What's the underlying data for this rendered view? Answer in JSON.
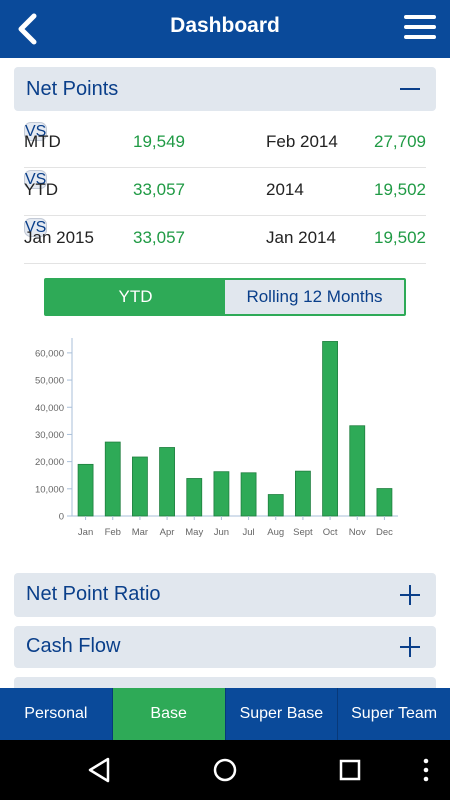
{
  "header": {
    "title": "Dashboard",
    "back_icon": "chevron-left-icon",
    "menu_icon": "hamburger-menu-icon"
  },
  "net_points": {
    "title": "Net Points",
    "toggle_icon": "minus-icon",
    "rows": [
      {
        "label": "MTD",
        "value": "19,549",
        "vs": "VS",
        "compare_label": "Feb 2014",
        "compare_value": "27,709"
      },
      {
        "label": "YTD",
        "value": "33,057",
        "vs": "VS",
        "compare_label": "2014",
        "compare_value": "19,502"
      },
      {
        "label": "Jan 2015",
        "value": "33,057",
        "vs": "VS",
        "compare_label": "Jan 2014",
        "compare_value": "19,502"
      }
    ]
  },
  "segment": {
    "options": [
      "YTD",
      "Rolling 12 Months"
    ],
    "selected": "YTD"
  },
  "chart_data": {
    "type": "bar",
    "categories": [
      "Jan",
      "Feb",
      "Mar",
      "Apr",
      "May",
      "Jun",
      "Jul",
      "Aug",
      "Sept",
      "Oct",
      "Nov",
      "Dec"
    ],
    "values": [
      19000,
      27200,
      21700,
      25200,
      13800,
      16300,
      15900,
      7900,
      16500,
      64200,
      33200,
      10100
    ],
    "ylim": [
      0,
      64000
    ],
    "yticks": [
      0,
      10000,
      20000,
      30000,
      40000,
      50000,
      60000
    ],
    "ytick_labels": [
      "0",
      "10,000",
      "20,000",
      "30,000",
      "40,000",
      "50,000",
      "60,000"
    ],
    "color": "#2eaa57",
    "grid": false
  },
  "sections": [
    {
      "title": "Net Point Ratio",
      "toggle_icon": "plus-icon"
    },
    {
      "title": "Cash Flow",
      "toggle_icon": "plus-icon"
    }
  ],
  "bottom_tabs": [
    "Personal",
    "Base",
    "Super Base",
    "Super Team"
  ],
  "active_tab": "Base",
  "system_nav": {
    "back": "back-triangle-icon",
    "home": "home-circle-icon",
    "recents": "recents-square-icon",
    "more": "overflow-dots-icon"
  },
  "colors": {
    "primary": "#0a4a9a",
    "accent": "#2eaa57",
    "panel": "#e1e7ee",
    "value_green": "#1f9a44"
  }
}
